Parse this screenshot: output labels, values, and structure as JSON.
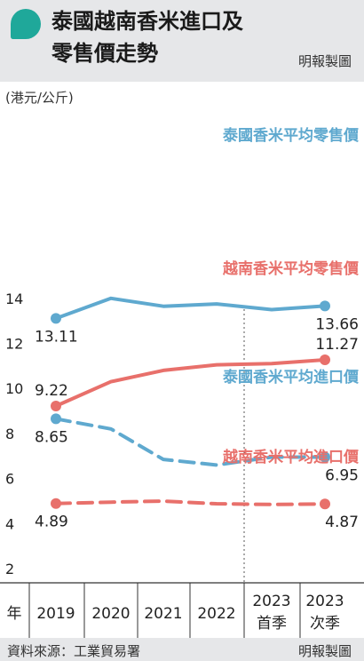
{
  "header": {
    "title_line1": "泰國越南香米進口及",
    "title_line2": "零售價走勢",
    "credit": "明報製圖"
  },
  "footer": {
    "source": "資料來源：工業貿易署",
    "credit": "明報製圖"
  },
  "colors": {
    "thai": "#5fa9cf",
    "vietnam": "#e8706b",
    "header_bg": "#e6e7e9",
    "accent": "#1fa89a"
  },
  "chart_data": {
    "type": "line",
    "ylabel": "(港元/公斤)",
    "ylim": [
      2,
      15
    ],
    "yticks": [
      2,
      4,
      6,
      8,
      10,
      12,
      14
    ],
    "grid": false,
    "x_header": "年",
    "categories": [
      [
        "2019"
      ],
      [
        "2020"
      ],
      [
        "2021"
      ],
      [
        "2022"
      ],
      [
        "2023",
        "首季"
      ],
      [
        "2023",
        "次季"
      ]
    ],
    "series": [
      {
        "name": "泰國香米平均零售價",
        "color": "#5fa9cf",
        "dashed": false,
        "values": [
          13.11,
          14.0,
          13.65,
          13.75,
          13.5,
          13.66
        ],
        "labels": [
          {
            "index": 0,
            "text": "13.11"
          },
          {
            "index": 5,
            "text": "13.66"
          }
        ]
      },
      {
        "name": "越南香米平均零售價",
        "color": "#e8706b",
        "dashed": false,
        "values": [
          9.22,
          10.3,
          10.8,
          11.05,
          11.1,
          11.27
        ],
        "labels": [
          {
            "index": 0,
            "text": "9.22"
          },
          {
            "index": 5,
            "text": "11.27"
          }
        ]
      },
      {
        "name": "泰國香米平均進口價",
        "color": "#5fa9cf",
        "dashed": true,
        "values": [
          8.65,
          8.2,
          6.85,
          6.6,
          6.95,
          6.95
        ],
        "labels": [
          {
            "index": 0,
            "text": "8.65"
          },
          {
            "index": 5,
            "text": "6.95"
          }
        ]
      },
      {
        "name": "越南香米平均進口價",
        "color": "#e8706b",
        "dashed": true,
        "values": [
          4.89,
          4.95,
          5.0,
          4.88,
          4.85,
          4.87
        ],
        "labels": [
          {
            "index": 0,
            "text": "4.89"
          },
          {
            "index": 5,
            "text": "4.87"
          }
        ]
      }
    ]
  }
}
